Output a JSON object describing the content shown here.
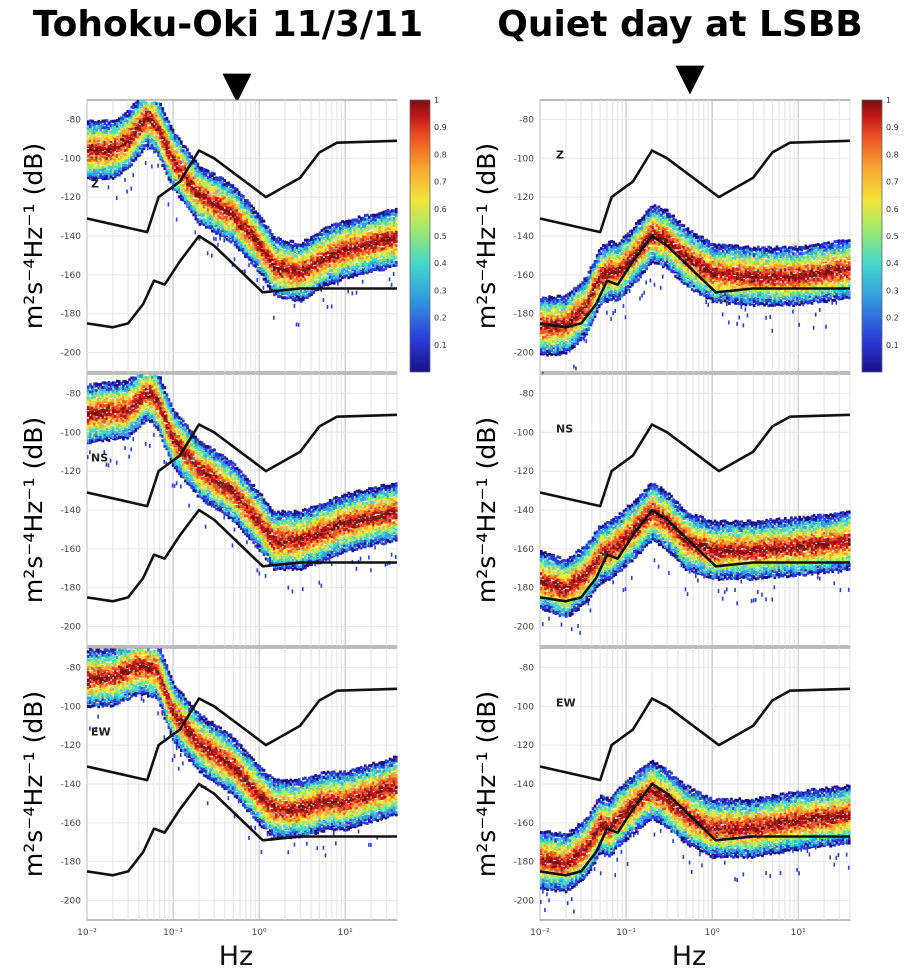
{
  "titles": {
    "left": "Tohoku-Oki 11/3/11",
    "right": "Quiet day at LSBB"
  },
  "markers": {
    "left": "▼",
    "right": "▼"
  },
  "chart_data": {
    "type": "heatmap",
    "description_type": "probability density function of power spectral density",
    "y_axis": {
      "label": "m²s⁻⁴Hz⁻¹ (dB)",
      "ylim": [
        -210,
        -70
      ],
      "ticks": [
        -80,
        -100,
        -120,
        -140,
        -160,
        -180,
        -200
      ]
    },
    "x_axis": {
      "label": "Hz",
      "scale": "log",
      "xlim": [
        0.01,
        40
      ],
      "ticks": [
        {
          "value": 0.01,
          "label": "10⁻²"
        },
        {
          "value": 0.1,
          "label": "10⁻¹"
        },
        {
          "value": 1,
          "label": "10⁰"
        },
        {
          "value": 10,
          "label": "10¹"
        }
      ]
    },
    "colorbar": {
      "ticks": [
        "0.1",
        "0.2",
        "0.3",
        "0.4",
        "0.5",
        "0.6",
        "0.7",
        "0.8",
        "0.9",
        "1"
      ],
      "range": [
        0,
        1
      ],
      "colors": [
        "#1a0f8a",
        "#2b3cd8",
        "#33a0e0",
        "#44d8c8",
        "#9ce870",
        "#f2e63a",
        "#f7a530",
        "#ee5522",
        "#c01818",
        "#7a0f0f"
      ]
    },
    "noise_models": {
      "high": [
        [
          0.01,
          -131
        ],
        [
          0.05,
          -138
        ],
        [
          0.068,
          -120
        ],
        [
          0.12,
          -112
        ],
        [
          0.2,
          -96
        ],
        [
          0.3,
          -100
        ],
        [
          1.2,
          -120
        ],
        [
          3,
          -110
        ],
        [
          5,
          -97
        ],
        [
          8,
          -92
        ],
        [
          40,
          -91
        ]
      ],
      "low": [
        [
          0.01,
          -185
        ],
        [
          0.02,
          -187
        ],
        [
          0.03,
          -185
        ],
        [
          0.045,
          -175
        ],
        [
          0.06,
          -163
        ],
        [
          0.08,
          -165
        ],
        [
          0.12,
          -153
        ],
        [
          0.2,
          -140
        ],
        [
          0.3,
          -145
        ],
        [
          1.1,
          -169
        ],
        [
          3,
          -167
        ],
        [
          40,
          -167
        ]
      ]
    },
    "panels": [
      {
        "event": "Tohoku-Oki 11/3/11",
        "component": "Z",
        "mode": [
          [
            0.01,
            -95
          ],
          [
            0.02,
            -95
          ],
          [
            0.03,
            -90
          ],
          [
            0.05,
            -78
          ],
          [
            0.065,
            -82
          ],
          [
            0.1,
            -100
          ],
          [
            0.2,
            -118
          ],
          [
            0.5,
            -128
          ],
          [
            1,
            -143
          ],
          [
            1.5,
            -155
          ],
          [
            3,
            -158
          ],
          [
            6,
            -150
          ],
          [
            10,
            -146
          ],
          [
            40,
            -140
          ]
        ]
      },
      {
        "event": "Tohoku-Oki 11/3/11",
        "component": "NS",
        "mode": [
          [
            0.01,
            -90
          ],
          [
            0.02,
            -88
          ],
          [
            0.03,
            -88
          ],
          [
            0.05,
            -78
          ],
          [
            0.065,
            -82
          ],
          [
            0.1,
            -102
          ],
          [
            0.2,
            -118
          ],
          [
            0.5,
            -130
          ],
          [
            1,
            -145
          ],
          [
            1.5,
            -155
          ],
          [
            3,
            -155
          ],
          [
            6,
            -150
          ],
          [
            10,
            -146
          ],
          [
            40,
            -140
          ]
        ]
      },
      {
        "event": "Tohoku-Oki 11/3/11",
        "component": "EW",
        "mode": [
          [
            0.01,
            -85
          ],
          [
            0.02,
            -84
          ],
          [
            0.04,
            -78
          ],
          [
            0.065,
            -80
          ],
          [
            0.1,
            -102
          ],
          [
            0.2,
            -118
          ],
          [
            0.5,
            -130
          ],
          [
            1,
            -145
          ],
          [
            1.5,
            -152
          ],
          [
            3,
            -152
          ],
          [
            6,
            -148
          ],
          [
            10,
            -148
          ],
          [
            40,
            -140
          ]
        ]
      },
      {
        "event": "Quiet day at LSBB",
        "component": "Z",
        "mode": [
          [
            0.01,
            -186
          ],
          [
            0.02,
            -185
          ],
          [
            0.035,
            -175
          ],
          [
            0.05,
            -160
          ],
          [
            0.065,
            -157
          ],
          [
            0.08,
            -158
          ],
          [
            0.12,
            -150
          ],
          [
            0.2,
            -138
          ],
          [
            0.3,
            -141
          ],
          [
            0.5,
            -150
          ],
          [
            1,
            -158
          ],
          [
            3,
            -160
          ],
          [
            10,
            -160
          ],
          [
            40,
            -156
          ]
        ]
      },
      {
        "event": "Quiet day at LSBB",
        "component": "NS",
        "mode": [
          [
            0.01,
            -175
          ],
          [
            0.02,
            -180
          ],
          [
            0.035,
            -172
          ],
          [
            0.05,
            -162
          ],
          [
            0.065,
            -160
          ],
          [
            0.08,
            -157
          ],
          [
            0.12,
            -150
          ],
          [
            0.2,
            -140
          ],
          [
            0.3,
            -145
          ],
          [
            0.5,
            -155
          ],
          [
            1,
            -160
          ],
          [
            3,
            -160
          ],
          [
            10,
            -158
          ],
          [
            40,
            -155
          ]
        ]
      },
      {
        "event": "Quiet day at LSBB",
        "component": "EW",
        "mode": [
          [
            0.01,
            -178
          ],
          [
            0.02,
            -180
          ],
          [
            0.035,
            -172
          ],
          [
            0.05,
            -160
          ],
          [
            0.065,
            -162
          ],
          [
            0.08,
            -157
          ],
          [
            0.12,
            -150
          ],
          [
            0.2,
            -142
          ],
          [
            0.3,
            -147
          ],
          [
            0.5,
            -155
          ],
          [
            1,
            -162
          ],
          [
            3,
            -162
          ],
          [
            10,
            -158
          ],
          [
            40,
            -155
          ]
        ]
      }
    ]
  }
}
